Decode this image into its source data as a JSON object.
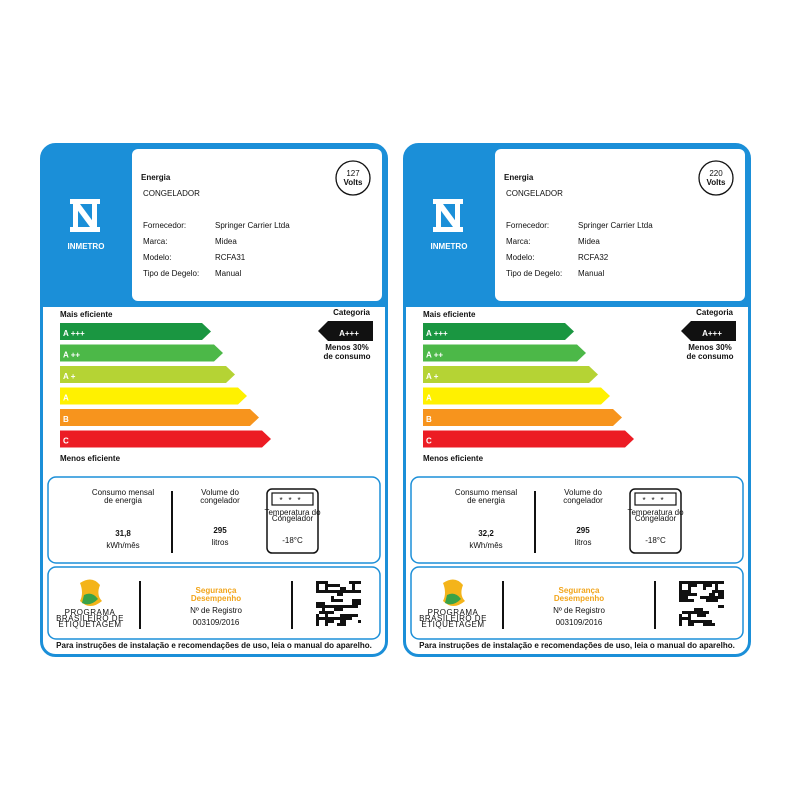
{
  "labels": [
    {
      "title": "Energia",
      "subtitle": "CONGELADOR",
      "voltage": "127",
      "voltage_unit": "Volts",
      "logo": "INMETRO",
      "fields": [
        {
          "label": "Fornecedor:",
          "value": "Springer Carrier Ltda"
        },
        {
          "label": "Marca:",
          "value": "Midea"
        },
        {
          "label": "Modelo:",
          "value": "RCFA31"
        },
        {
          "label": "Tipo de Degelo:",
          "value": "Manual"
        }
      ],
      "efficiency": {
        "top": "Mais eficiente",
        "bottom": "Menos eficiente",
        "classes": [
          "A +++",
          "A ++",
          "A +",
          "A",
          "B",
          "C"
        ],
        "category_title": "Categoria",
        "category": "A+++",
        "category_note": [
          "Menos 30%",
          "de consumo"
        ]
      },
      "consumption": {
        "label": [
          "Consumo mensal",
          "de energia"
        ],
        "value": "31,8",
        "unit": "kWh/mês"
      },
      "volume": {
        "label": [
          "Volume do",
          "congelador"
        ],
        "value": "295",
        "unit": "litros"
      },
      "temperature": {
        "label": [
          "Temperatura do",
          "Congelador"
        ],
        "value": "-18°C"
      },
      "footer": {
        "program": [
          "PROGRAMA",
          "BRASILEIRO DE",
          "ETIQUETAGEM"
        ],
        "seal": [
          "Segurança",
          "Desempenho"
        ],
        "registry_label": "Nº de Registro",
        "registry": "003109/2016"
      },
      "note": "Para instruções de instalação e recomendações de uso, leia o manual do aparelho."
    },
    {
      "title": "Energia",
      "subtitle": "CONGELADOR",
      "voltage": "220",
      "voltage_unit": "Volts",
      "logo": "INMETRO",
      "fields": [
        {
          "label": "Fornecedor:",
          "value": "Springer Carrier Ltda"
        },
        {
          "label": "Marca:",
          "value": "Midea"
        },
        {
          "label": "Modelo:",
          "value": "RCFA32"
        },
        {
          "label": "Tipo de Degelo:",
          "value": "Manual"
        }
      ],
      "efficiency": {
        "top": "Mais eficiente",
        "bottom": "Menos eficiente",
        "classes": [
          "A +++",
          "A ++",
          "A +",
          "A",
          "B",
          "C"
        ],
        "category_title": "Categoria",
        "category": "A+++",
        "category_note": [
          "Menos 30%",
          "de consumo"
        ]
      },
      "consumption": {
        "label": [
          "Consumo mensal",
          "de energia"
        ],
        "value": "32,2",
        "unit": "kWh/mês"
      },
      "volume": {
        "label": [
          "Volume do",
          "congelador"
        ],
        "value": "295",
        "unit": "litros"
      },
      "temperature": {
        "label": [
          "Temperatura do",
          "Congelador"
        ],
        "value": "-18°C"
      },
      "footer": {
        "program": [
          "PROGRAMA",
          "BRASILEIRO DE",
          "ETIQUETAGEM"
        ],
        "seal": [
          "Segurança",
          "Desempenho"
        ],
        "registry_label": "Nº de Registro",
        "registry": "003109/2016"
      },
      "note": "Para instruções de instalação e recomendações de uso, leia o manual do aparelho."
    }
  ]
}
